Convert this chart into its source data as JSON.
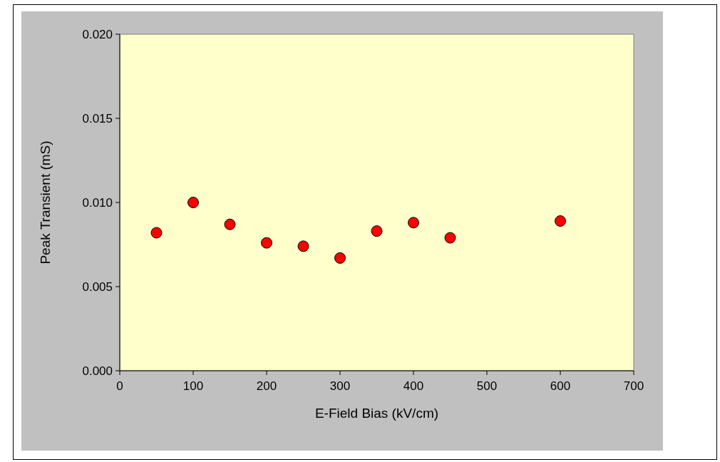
{
  "chart_data": {
    "type": "scatter",
    "xlabel": "E-Field Bias (kV/cm)",
    "ylabel": "Peak Transient (mS)",
    "x": [
      50,
      100,
      150,
      200,
      250,
      300,
      350,
      400,
      450,
      600
    ],
    "series": [
      {
        "color": "#ff0000",
        "values": [
          0.0082,
          0.01,
          0.0087,
          0.0076,
          0.0074,
          0.0067,
          0.0083,
          0.0088,
          0.0079,
          0.0089
        ]
      }
    ],
    "xlim": [
      0,
      700
    ],
    "xticks": [
      0,
      100,
      200,
      300,
      400,
      500,
      600,
      700
    ],
    "ylim": [
      0,
      0.02
    ],
    "yticks": [
      {
        "value": 0,
        "label": "0.000"
      },
      {
        "value": 0.005,
        "label": "0.005"
      },
      {
        "value": 0.01,
        "label": "0.010"
      },
      {
        "value": 0.015,
        "label": "0.015"
      },
      {
        "value": 0.02,
        "label": "0.020"
      }
    ],
    "grid": false,
    "marker": "circle"
  }
}
